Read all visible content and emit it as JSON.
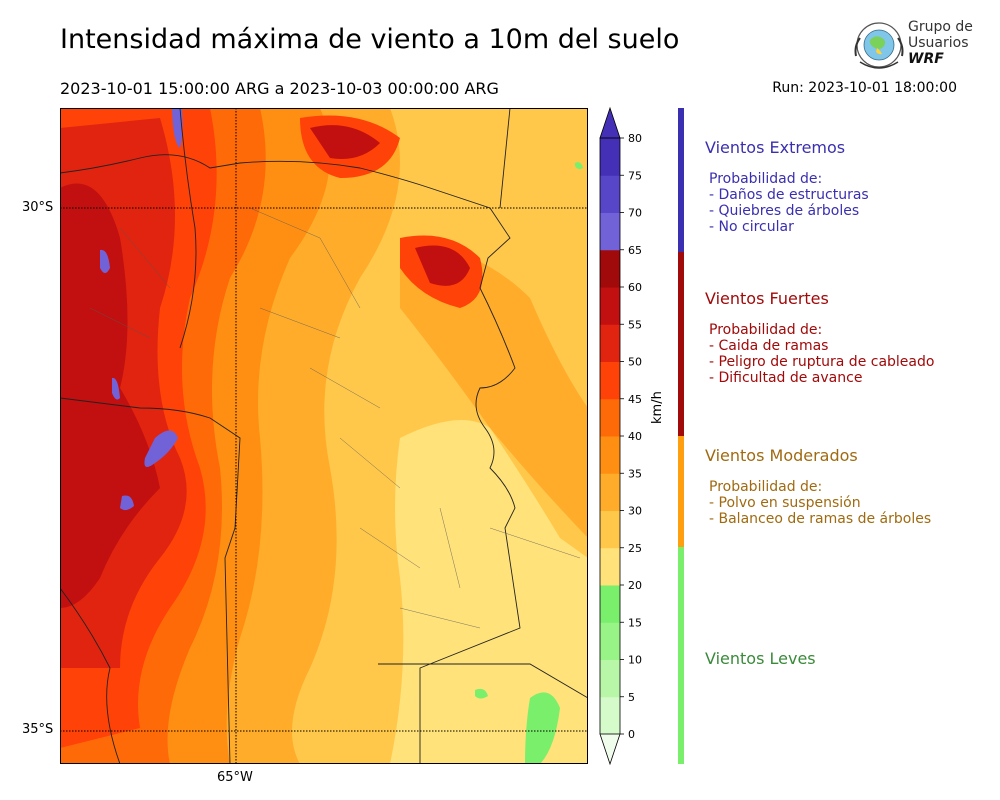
{
  "header": {
    "title": "Intensidad máxima de viento a 10m del suelo",
    "period": "2023-10-01 15:00:00 ARG  a  2023-10-03 00:00:00 ARG",
    "run": "Run: 2023-10-01 18:00:00"
  },
  "logo": {
    "line1": "Grupo de",
    "line2": "Usuarios",
    "brand": "WRF",
    "icon": "globe-seal-icon"
  },
  "map": {
    "lat_labels": [
      "30°S",
      "35°S"
    ],
    "lon_labels": [
      "65°W"
    ]
  },
  "colorbar": {
    "unit": "km/h",
    "ticks": [
      "0",
      "5",
      "10",
      "15",
      "20",
      "25",
      "30",
      "35",
      "40",
      "45",
      "50",
      "55",
      "60",
      "65",
      "70",
      "75",
      "80"
    ],
    "colors": [
      "#f1fdec",
      "#d6fbca",
      "#b8f7a7",
      "#98f486",
      "#79ef6b",
      "#ffe27a",
      "#ffc84b",
      "#ffac2b",
      "#ff8f12",
      "#ff6a08",
      "#ff4208",
      "#e02410",
      "#c20f0f",
      "#a00a0a",
      "#7262d8",
      "#5846c8",
      "#4330b6"
    ]
  },
  "categories": [
    {
      "title": "Vientos Extremos",
      "intro": "Probabilidad de:",
      "items": [
        "- Daños de estructuras",
        "- Quiebres de árboles",
        "- No circular"
      ],
      "color": "#3a2fb0"
    },
    {
      "title": "Vientos Fuertes",
      "intro": "Probabilidad de:",
      "items": [
        "- Caida de ramas",
        "- Peligro de ruptura de cableado",
        "- Dificultad de avance"
      ],
      "color": "#a00a0a"
    },
    {
      "title": "Vientos Moderados",
      "intro": "Probabilidad de:",
      "items": [
        "- Polvo en suspensión",
        "- Balanceo de ramas de árboles"
      ],
      "color": "#a06a10"
    },
    {
      "title": "Vientos Leves",
      "intro": "",
      "items": [],
      "color": "#3a8a3a"
    }
  ]
}
